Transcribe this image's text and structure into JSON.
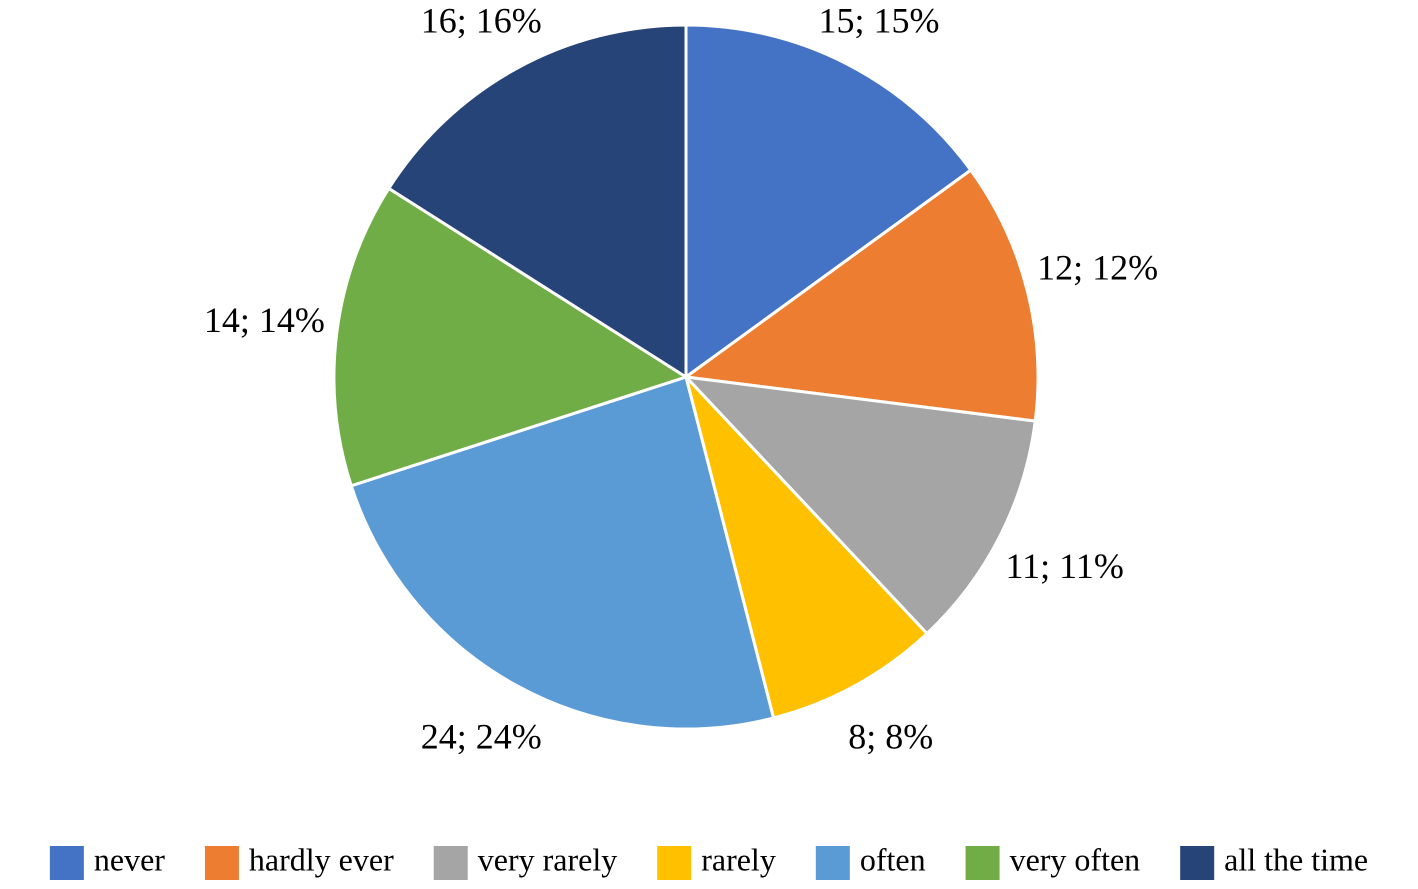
{
  "chart_data": {
    "type": "pie",
    "categories": [
      "never",
      "hardly ever",
      "very rarely",
      "rarely",
      "often",
      "very often",
      "all the time"
    ],
    "values": [
      15,
      12,
      11,
      8,
      24,
      14,
      16
    ],
    "value_labels": [
      "15; 15%",
      "12; 12%",
      "11; 11%",
      "8; 8%",
      "24; 24%",
      "14; 14%",
      "16; 16%"
    ],
    "colors": [
      "#4472c4",
      "#ed7d31",
      "#a5a5a5",
      "#ffc000",
      "#5b9bd5",
      "#70ad47",
      "#264478"
    ],
    "legend": "bottom"
  }
}
